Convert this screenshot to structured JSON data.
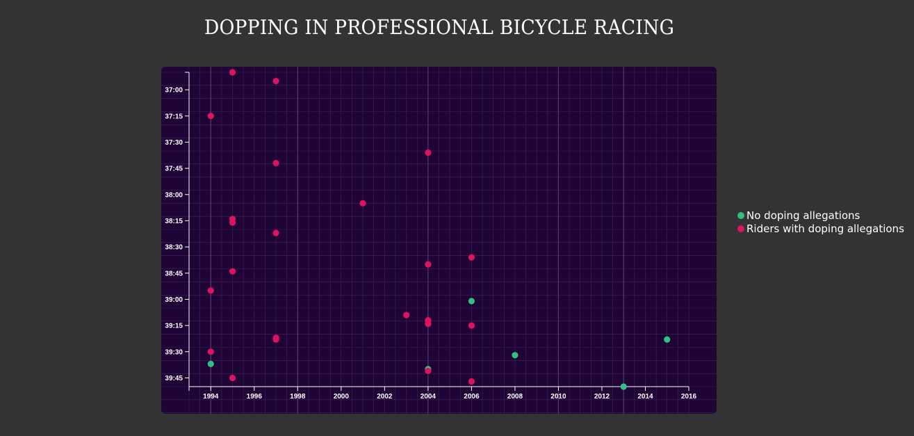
{
  "title": "DOPPING IN PROFESSIONAL BICYCLE RACING",
  "colors": {
    "background": "#333333",
    "panel": "#1e0535",
    "grid": "#5a3d7a",
    "axis": "#ffffff",
    "clean": "#2ec27e",
    "doping": "#e0115f"
  },
  "legend": [
    {
      "label": "No doping allegations",
      "key": "clean"
    },
    {
      "label": "Riders with doping allegations",
      "key": "doping"
    }
  ],
  "chart_data": {
    "type": "scatter",
    "title": "DOPPING IN PROFESSIONAL BICYCLE RACING",
    "xlabel": "",
    "ylabel": "",
    "xlim": [
      1993,
      2016
    ],
    "ylim_seconds": [
      2210,
      2390
    ],
    "y_reversed": true,
    "grid": true,
    "legend_position": "right",
    "x_ticks": [
      "1994",
      "1996",
      "1998",
      "2000",
      "2002",
      "2004",
      "2006",
      "2008",
      "2010",
      "2012",
      "2014",
      "2016"
    ],
    "y_ticks": [
      "37:00",
      "37:15",
      "37:30",
      "37:45",
      "38:00",
      "38:15",
      "38:30",
      "38:45",
      "39:00",
      "39:15",
      "39:30",
      "39:45"
    ],
    "series": [
      {
        "name": "No doping allegations",
        "key": "clean",
        "points": [
          {
            "x": 1994,
            "y": "39:37"
          },
          {
            "x": 2004,
            "y": "39:40"
          },
          {
            "x": 2006,
            "y": "39:01"
          },
          {
            "x": 2008,
            "y": "39:32"
          },
          {
            "x": 2013,
            "y": "39:50"
          },
          {
            "x": 2015,
            "y": "39:23"
          }
        ]
      },
      {
        "name": "Riders with doping allegations",
        "key": "doping",
        "points": [
          {
            "x": 1995,
            "y": "36:50"
          },
          {
            "x": 1997,
            "y": "36:55"
          },
          {
            "x": 1994,
            "y": "37:15"
          },
          {
            "x": 2004,
            "y": "37:36"
          },
          {
            "x": 1997,
            "y": "37:42"
          },
          {
            "x": 2001,
            "y": "38:05"
          },
          {
            "x": 1995,
            "y": "38:14"
          },
          {
            "x": 1995,
            "y": "38:16"
          },
          {
            "x": 1997,
            "y": "38:22"
          },
          {
            "x": 2006,
            "y": "38:36"
          },
          {
            "x": 2004,
            "y": "38:40"
          },
          {
            "x": 1995,
            "y": "38:44"
          },
          {
            "x": 1994,
            "y": "38:55"
          },
          {
            "x": 2003,
            "y": "39:09"
          },
          {
            "x": 2004,
            "y": "39:12"
          },
          {
            "x": 2004,
            "y": "39:14"
          },
          {
            "x": 2006,
            "y": "39:15"
          },
          {
            "x": 1997,
            "y": "39:22"
          },
          {
            "x": 1997,
            "y": "39:23"
          },
          {
            "x": 1994,
            "y": "39:30"
          },
          {
            "x": 2004,
            "y": "39:41"
          },
          {
            "x": 1995,
            "y": "39:45"
          },
          {
            "x": 2006,
            "y": "39:47"
          }
        ]
      }
    ]
  }
}
